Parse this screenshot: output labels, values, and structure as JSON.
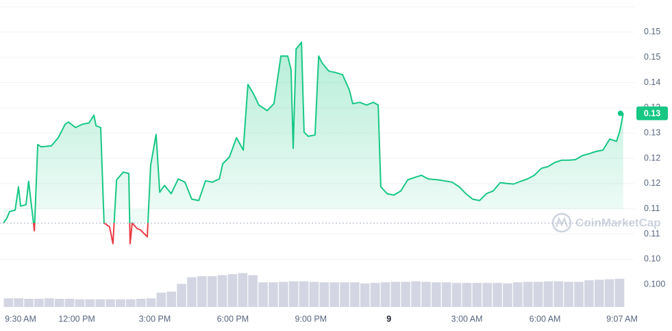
{
  "chart_data": {
    "type": "line",
    "color": "#16c784",
    "down_color": "#ea3943",
    "baseline": 0.1094,
    "grid": true,
    "xlim": [
      0.18,
      24.12
    ],
    "ylim": [
      0.0911,
      0.1565
    ],
    "xticks": [
      {
        "value": 0.5,
        "label": "9:30 AM"
      },
      {
        "value": 3,
        "label": "12:00 PM"
      },
      {
        "value": 6,
        "label": "3:00 PM"
      },
      {
        "value": 9,
        "label": "6:00 PM"
      },
      {
        "value": 12,
        "label": "9:00 PM"
      },
      {
        "value": 15,
        "label": "9"
      },
      {
        "value": 18,
        "label": "3:00 AM"
      },
      {
        "value": 21,
        "label": "6:00 AM"
      },
      {
        "value": 24.117,
        "label": "9:07 AM"
      }
    ],
    "yticks": [
      {
        "value": 0.1015,
        "label": "0.10"
      },
      {
        "value": 0.107,
        "label": "0.11"
      },
      {
        "value": 0.1125,
        "label": "0.11"
      },
      {
        "value": 0.118,
        "label": "0.12"
      },
      {
        "value": 0.1235,
        "label": "0.12"
      },
      {
        "value": 0.129,
        "label": "0.13"
      },
      {
        "value": 0.1345,
        "label": "0.13"
      },
      {
        "value": 0.14,
        "label": "0.14"
      },
      {
        "value": 0.1455,
        "label": "0.15"
      },
      {
        "value": 0.151,
        "label": "0.15"
      }
    ],
    "x": [
      0.18,
      0.31,
      0.42,
      0.63,
      0.76,
      0.84,
      1.05,
      1.15,
      1.26,
      1.37,
      1.5,
      1.63,
      2.02,
      2.29,
      2.55,
      2.68,
      2.95,
      3.21,
      3.47,
      3.66,
      3.74,
      3.92,
      4.05,
      4.26,
      4.39,
      4.53,
      4.79,
      5.0,
      5.05,
      5.13,
      5.32,
      5.45,
      5.71,
      5.84,
      6.05,
      6.19,
      6.37,
      6.63,
      6.9,
      7.16,
      7.42,
      7.69,
      7.95,
      8.21,
      8.48,
      8.61,
      8.87,
      9.14,
      9.4,
      9.58,
      9.79,
      10.0,
      10.32,
      10.58,
      10.85,
      11.11,
      11.24,
      11.32,
      11.43,
      11.64,
      11.74,
      11.9,
      12.16,
      12.3,
      12.43,
      12.69,
      12.95,
      13.22,
      13.48,
      13.61,
      13.88,
      14.14,
      14.4,
      14.59,
      14.69,
      14.93,
      15.19,
      15.46,
      15.72,
      15.98,
      16.25,
      16.51,
      16.91,
      17.43,
      17.7,
      17.96,
      18.22,
      18.49,
      18.75,
      19.01,
      19.28,
      19.54,
      19.8,
      20.07,
      20.33,
      20.59,
      20.86,
      21.12,
      21.38,
      21.65,
      21.91,
      22.17,
      22.44,
      22.7,
      22.96,
      23.23,
      23.49,
      23.75,
      23.88,
      24.01
    ],
    "values": [
      0.1094,
      0.1104,
      0.1119,
      0.1122,
      0.1173,
      0.1131,
      0.1134,
      0.1185,
      0.1131,
      0.1077,
      0.1265,
      0.126,
      0.1262,
      0.128,
      0.1309,
      0.1314,
      0.1302,
      0.1309,
      0.1312,
      0.1329,
      0.1306,
      0.1302,
      0.1094,
      0.1086,
      0.1049,
      0.1188,
      0.1205,
      0.1202,
      0.1049,
      0.1094,
      0.1082,
      0.1079,
      0.1064,
      0.122,
      0.1287,
      0.1161,
      0.1176,
      0.1158,
      0.119,
      0.1183,
      0.1146,
      0.1143,
      0.1186,
      0.1183,
      0.119,
      0.1223,
      0.1238,
      0.128,
      0.1253,
      0.1396,
      0.1376,
      0.1351,
      0.1339,
      0.1354,
      0.1458,
      0.1458,
      0.1428,
      0.1257,
      0.1473,
      0.1488,
      0.1292,
      0.1283,
      0.1286,
      0.1458,
      0.1443,
      0.1425,
      0.1422,
      0.1417,
      0.1384,
      0.1354,
      0.1357,
      0.1351,
      0.1357,
      0.1351,
      0.1173,
      0.1158,
      0.1155,
      0.1164,
      0.1188,
      0.1193,
      0.1198,
      0.119,
      0.1188,
      0.1183,
      0.1173,
      0.1158,
      0.1146,
      0.1143,
      0.1158,
      0.1164,
      0.1182,
      0.118,
      0.1179,
      0.1185,
      0.119,
      0.1198,
      0.1213,
      0.1217,
      0.1226,
      0.1231,
      0.1231,
      0.1232,
      0.1241,
      0.1245,
      0.125,
      0.1253,
      0.1277,
      0.1272,
      0.1295,
      0.1333
    ],
    "last_price_label": "0.13",
    "volume": {
      "color": "#d3d6e2",
      "values": [
        17,
        17,
        16,
        16,
        17,
        16,
        16,
        15,
        15,
        15,
        15,
        15,
        15,
        16,
        17,
        28,
        30,
        45,
        58,
        60,
        60,
        62,
        64,
        66,
        62,
        48,
        48,
        49,
        50,
        50,
        49,
        48,
        48,
        48,
        48,
        46,
        47,
        48,
        49,
        49,
        50,
        49,
        48,
        48,
        47,
        47,
        47,
        47,
        47,
        46,
        48,
        49,
        49,
        50,
        50,
        49,
        49,
        52,
        53,
        54,
        55
      ]
    },
    "volume_axis_label": "0.100",
    "watermark": "CoinMarketCap"
  }
}
